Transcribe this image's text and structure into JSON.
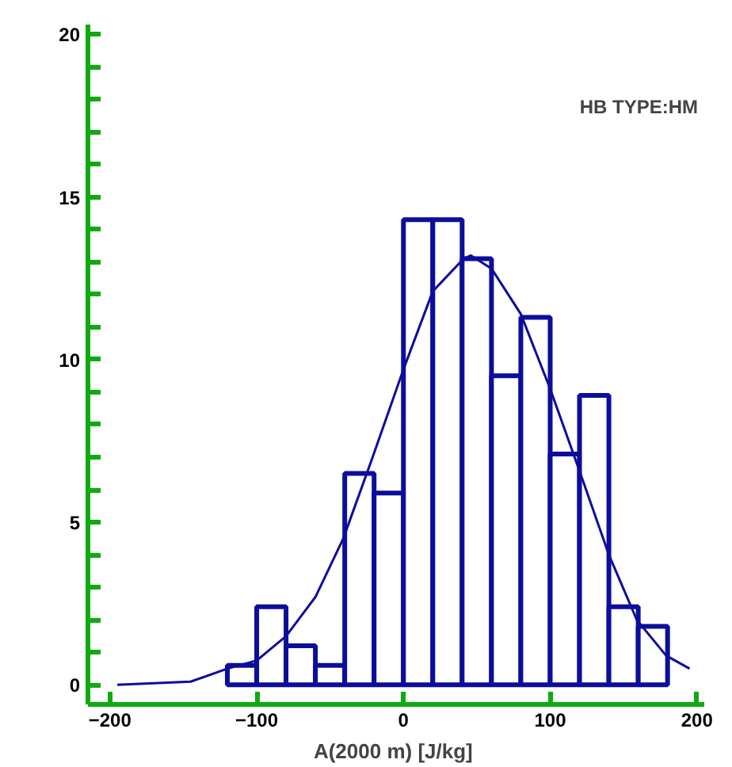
{
  "chart_data": {
    "type": "histogram",
    "xlabel": "A(2000 m)  [J/kg]",
    "annotations": [
      "HB TYPE:HM"
    ],
    "bins": [
      -120,
      -100,
      -80,
      -60,
      -40,
      -20,
      0,
      20,
      40,
      60,
      80,
      100,
      120,
      140,
      160,
      180
    ],
    "values": [
      0.6,
      2.4,
      1.2,
      0.6,
      6.5,
      5.9,
      14.3,
      14.3,
      13.1,
      9.5,
      11.3,
      7.1,
      8.9,
      2.4,
      1.8
    ],
    "color": "#0d0d9c",
    "series": [
      {
        "type": "line",
        "color": "#0d0d9c",
        "x": [
          -195,
          -145,
          -120,
          -100,
          -80,
          -60,
          -41,
          -21,
          0,
          20,
          41,
          46,
          60,
          80,
          100,
          119,
          140,
          159,
          179,
          195
        ],
        "values": [
          0,
          0.1,
          0.5,
          0.75,
          1.5,
          2.7,
          4.5,
          7.0,
          9.7,
          12.1,
          13.1,
          13.2,
          12.8,
          11.4,
          9.1,
          6.7,
          4.0,
          2.0,
          0.9,
          0.5
        ]
      }
    ],
    "xlim": [
      -215,
      205
    ],
    "ylim": [
      -0.6,
      20.3
    ],
    "xticks": [
      -200,
      -100,
      0,
      100,
      200
    ],
    "yticks": [
      0,
      {
        "value": 1,
        "label": null
      },
      {
        "value": 2,
        "label": null
      },
      {
        "value": 3,
        "label": null
      },
      {
        "value": 4,
        "label": null
      },
      5,
      {
        "value": 6,
        "label": null
      },
      {
        "value": 7,
        "label": null
      },
      {
        "value": 8,
        "label": null
      },
      {
        "value": 9,
        "label": null
      },
      10,
      {
        "value": 11,
        "label": null
      },
      {
        "value": 12,
        "label": null
      },
      {
        "value": 13,
        "label": null
      },
      {
        "value": 14,
        "label": null
      },
      15,
      {
        "value": 16,
        "label": null
      },
      {
        "value": 17,
        "label": null
      },
      {
        "value": 18,
        "label": null
      },
      {
        "value": 19,
        "label": null
      },
      20
    ],
    "grid": false,
    "marker": "none",
    "line_style": "solid"
  }
}
